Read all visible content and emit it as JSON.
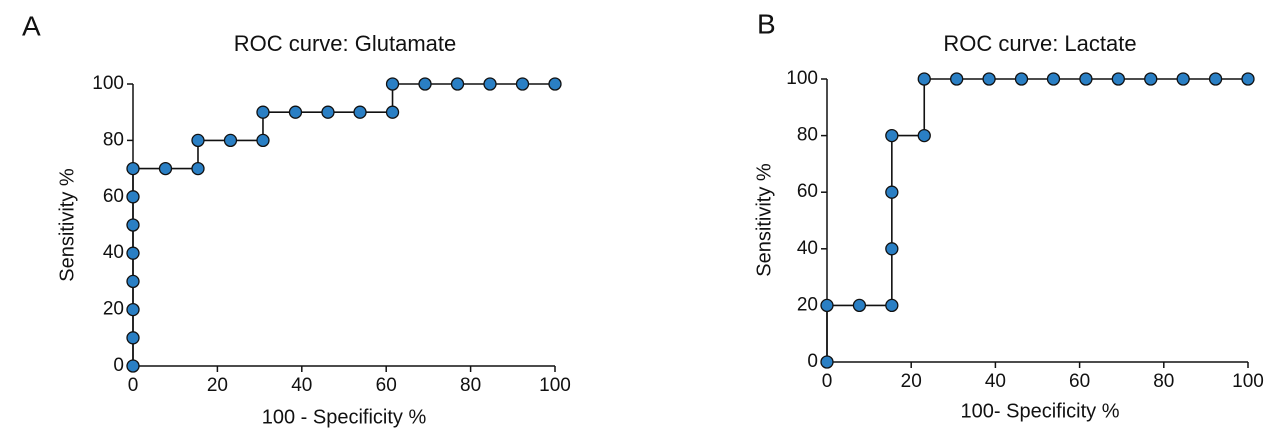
{
  "chart_data": [
    {
      "type": "line",
      "panel_label": "A",
      "title": "ROC curve: Glutamate",
      "x_label": "100 - Specificity %",
      "y_label": "Sensitivity %",
      "x": [
        0,
        0,
        0,
        0,
        0,
        0,
        0,
        0,
        7.7,
        15.4,
        15.4,
        23.1,
        30.8,
        30.8,
        38.5,
        46.2,
        53.8,
        61.5,
        61.5,
        69.2,
        76.9,
        84.6,
        92.3,
        100
      ],
      "values": [
        0,
        10,
        20,
        30,
        40,
        50,
        60,
        70,
        70,
        70,
        80,
        80,
        80,
        90,
        90,
        90,
        90,
        90,
        100,
        100,
        100,
        100,
        100,
        100
      ],
      "color": "#2a7fc4",
      "xlim": [
        0,
        100
      ],
      "ylim": [
        0,
        100
      ],
      "xticks": [
        0,
        20,
        40,
        60,
        80,
        100
      ],
      "yticks": [
        0,
        20,
        40,
        60,
        80,
        100
      ],
      "grid": false
    },
    {
      "type": "line",
      "panel_label": "B",
      "title": "ROC curve:  Lactate",
      "x_label": "100- Specificity %",
      "y_label": "Sensitivity %",
      "x": [
        0,
        0,
        7.7,
        15.4,
        15.4,
        15.4,
        15.4,
        23.1,
        23.1,
        30.8,
        38.5,
        46.2,
        53.8,
        61.5,
        69.2,
        76.9,
        84.6,
        92.3,
        100
      ],
      "values": [
        0,
        20,
        20,
        20,
        40,
        60,
        80,
        80,
        100,
        100,
        100,
        100,
        100,
        100,
        100,
        100,
        100,
        100,
        100
      ],
      "color": "#2a7fc4",
      "xlim": [
        0,
        100
      ],
      "ylim": [
        0,
        100
      ],
      "xticks": [
        0,
        20,
        40,
        60,
        80,
        100
      ],
      "yticks": [
        0,
        20,
        40,
        60,
        80,
        100
      ],
      "grid": false
    }
  ]
}
